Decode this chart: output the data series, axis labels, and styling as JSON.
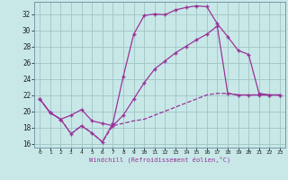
{
  "background_color": "#c8e8e8",
  "grid_color": "#a0c4c4",
  "line_color": "#993399",
  "xlabel": "Windchill (Refroidissement éolien,°C)",
  "xlim": [
    -0.5,
    23.5
  ],
  "ylim": [
    15.5,
    33.5
  ],
  "yticks": [
    16,
    18,
    20,
    22,
    24,
    26,
    28,
    30,
    32
  ],
  "xticks": [
    0,
    1,
    2,
    3,
    4,
    5,
    6,
    7,
    8,
    9,
    10,
    11,
    12,
    13,
    14,
    15,
    16,
    17,
    18,
    19,
    20,
    21,
    22,
    23
  ],
  "line1_x": [
    0,
    1,
    2,
    3,
    4,
    5,
    6,
    7,
    8,
    9,
    10,
    11,
    12,
    13,
    14,
    15,
    16,
    17,
    18,
    19,
    20,
    21,
    22,
    23
  ],
  "line1_y": [
    21.5,
    19.8,
    19.0,
    17.2,
    18.2,
    17.3,
    16.2,
    18.5,
    24.3,
    29.5,
    31.8,
    32.0,
    31.9,
    32.5,
    32.8,
    33.0,
    32.9,
    30.8,
    29.2,
    27.5,
    27.0,
    22.2,
    22.0,
    22.0
  ],
  "line2_x": [
    0,
    1,
    2,
    3,
    4,
    5,
    6,
    7,
    8,
    9,
    10,
    11,
    12,
    13,
    14,
    15,
    16,
    17,
    18,
    19,
    20,
    21,
    22,
    23
  ],
  "line2_y": [
    21.5,
    19.8,
    19.0,
    19.5,
    20.2,
    18.8,
    18.5,
    18.2,
    19.5,
    21.5,
    23.5,
    25.2,
    26.2,
    27.2,
    28.0,
    28.8,
    29.5,
    30.5,
    22.2,
    22.0,
    22.0,
    22.0,
    22.0,
    22.0
  ],
  "line3_x": [
    0,
    1,
    2,
    3,
    4,
    5,
    6,
    7,
    8,
    9,
    10,
    11,
    12,
    13,
    14,
    15,
    16,
    17,
    18,
    19,
    20,
    21,
    22,
    23
  ],
  "line3_y": [
    21.5,
    19.8,
    19.0,
    17.2,
    18.2,
    17.3,
    16.2,
    18.2,
    18.5,
    18.8,
    19.0,
    19.5,
    20.0,
    20.5,
    21.0,
    21.5,
    22.0,
    22.2,
    22.2,
    22.0,
    22.0,
    22.0,
    22.0,
    22.0
  ]
}
